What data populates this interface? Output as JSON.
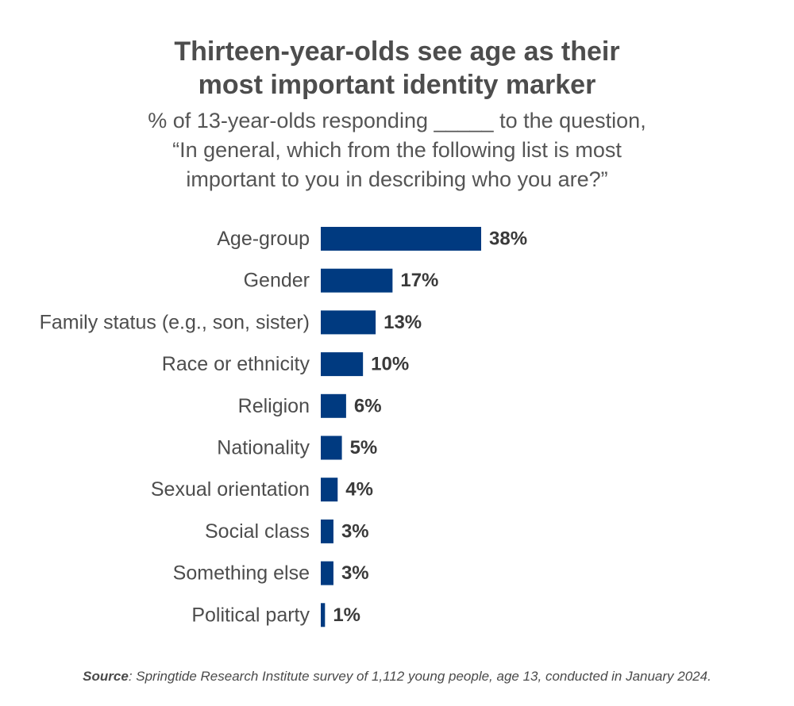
{
  "title_lines": [
    "Thirteen-year-olds see age as their",
    "most important identity marker"
  ],
  "subtitle_lines": [
    "% of 13-year-olds responding _____ to the question,",
    "“In general, which from the following list is most",
    "important to you in describing who you are?”"
  ],
  "source": {
    "label": "Source",
    "text": ": Springtide Research Institute survey of 1,112 young people, age 13, conducted in January 2024."
  },
  "colors": {
    "bar": "#003A80",
    "category_text": "#4d4d4d",
    "value_text": "#3a3a3a"
  },
  "chart_data": {
    "type": "bar",
    "orientation": "horizontal",
    "categories": [
      "Age-group",
      "Gender",
      "Family status (e.g., son, sister)",
      "Race or ethnicity",
      "Religion",
      "Nationality",
      "Sexual orientation",
      "Social class",
      "Something else",
      "Political party"
    ],
    "values": [
      38,
      17,
      13,
      10,
      6,
      5,
      4,
      3,
      3,
      1
    ],
    "value_labels": [
      "38%",
      "17%",
      "13%",
      "10%",
      "6%",
      "5%",
      "4%",
      "3%",
      "3%",
      "1%"
    ],
    "unit": "%",
    "grid": false,
    "legend": "none"
  }
}
